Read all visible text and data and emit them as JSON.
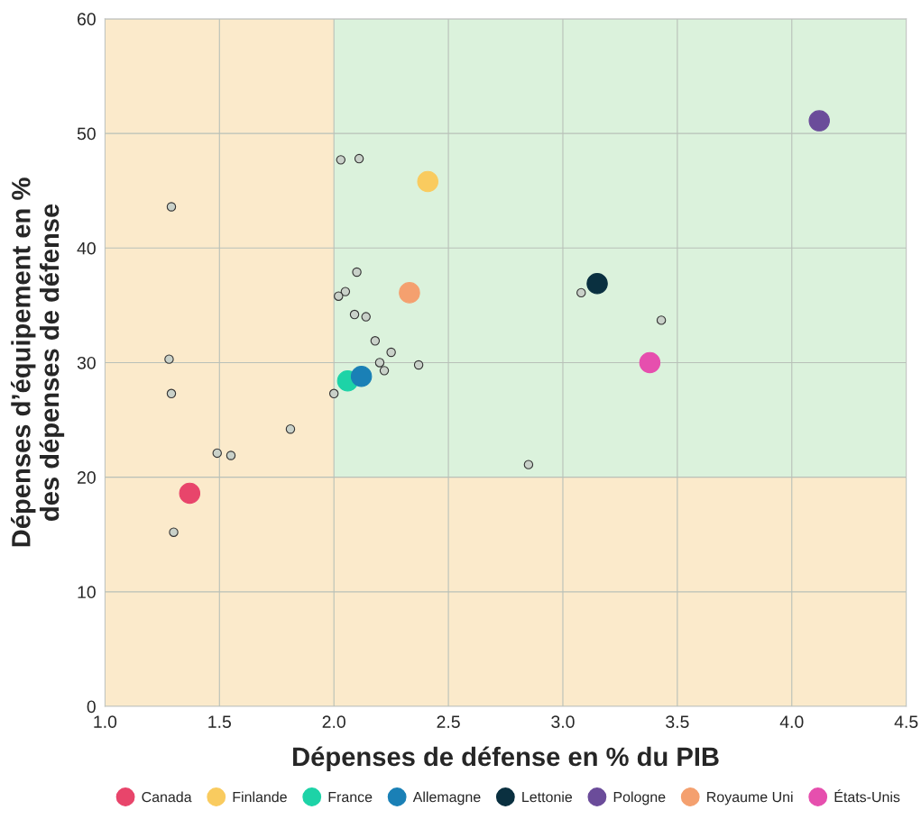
{
  "chart_data": {
    "type": "scatter",
    "xlabel": "Dépenses de défense en % du PIB",
    "ylabel": "Dépenses d’équipement en %\ndes dépenses de défense",
    "xlim": [
      1.0,
      4.5
    ],
    "xticks": [
      {
        "value": 1.0,
        "label": "1.0"
      },
      {
        "value": 1.5,
        "label": "1.5"
      },
      {
        "value": 2.0,
        "label": "2.0"
      },
      {
        "value": 2.5,
        "label": "2.5"
      },
      {
        "value": 3.0,
        "label": "3.0"
      },
      {
        "value": 3.5,
        "label": "3.5"
      },
      {
        "value": 4.0,
        "label": "4.0"
      },
      {
        "value": 4.5,
        "label": "4.5"
      }
    ],
    "ylim": [
      0,
      60
    ],
    "yticks": [
      0,
      10,
      20,
      30,
      40,
      50,
      60
    ],
    "grid": true,
    "legend": "bottom",
    "marker": "circle",
    "bands": [
      {
        "axis": "x",
        "from": 1.0,
        "to": 2.0,
        "color": "#fbeacb"
      },
      {
        "axis": "x",
        "from": 2.0,
        "to": 4.5,
        "color": "#dbf2dc"
      },
      {
        "axis": "y",
        "from": 0,
        "to": 20,
        "color": "#fbeacb"
      }
    ],
    "series": [
      {
        "color": "#c9d1c9",
        "x": [
          1.29,
          1.28,
          1.29,
          1.49,
          1.55,
          1.81,
          1.3,
          2.03,
          2.11,
          2.1,
          2.05,
          2.02,
          2.09,
          2.14,
          2.18,
          2.25,
          2.2,
          2.22,
          2.37,
          2.0,
          2.85,
          3.08,
          3.43
        ],
        "values": [
          43.6,
          30.3,
          27.3,
          22.1,
          21.9,
          24.2,
          15.2,
          47.7,
          47.8,
          37.9,
          36.2,
          35.8,
          34.2,
          34.0,
          31.9,
          30.9,
          30.0,
          29.3,
          29.8,
          27.3,
          21.1,
          36.1,
          33.7
        ]
      },
      {
        "name": "Canada",
        "color": "#e8456b",
        "x": [
          1.37
        ],
        "values": [
          18.6
        ]
      },
      {
        "name": "Finlande",
        "color": "#f9cb5f",
        "x": [
          2.41
        ],
        "values": [
          45.8
        ]
      },
      {
        "name": "France",
        "color": "#1dd3a7",
        "x": [
          2.06
        ],
        "values": [
          28.4
        ]
      },
      {
        "name": "Allemagne",
        "color": "#1a80b6",
        "x": [
          2.12
        ],
        "values": [
          28.8
        ]
      },
      {
        "name": "Lettonie",
        "color": "#0a3040",
        "x": [
          3.15
        ],
        "values": [
          36.9
        ]
      },
      {
        "name": "Pologne",
        "color": "#6b4c9a",
        "x": [
          4.12
        ],
        "values": [
          51.1
        ]
      },
      {
        "name": "Royaume Uni",
        "color": "#f4a06f",
        "x": [
          2.33
        ],
        "values": [
          36.1
        ]
      },
      {
        "name": "États-Unis",
        "color": "#e64fae",
        "x": [
          3.38
        ],
        "values": [
          30.0
        ]
      }
    ]
  }
}
